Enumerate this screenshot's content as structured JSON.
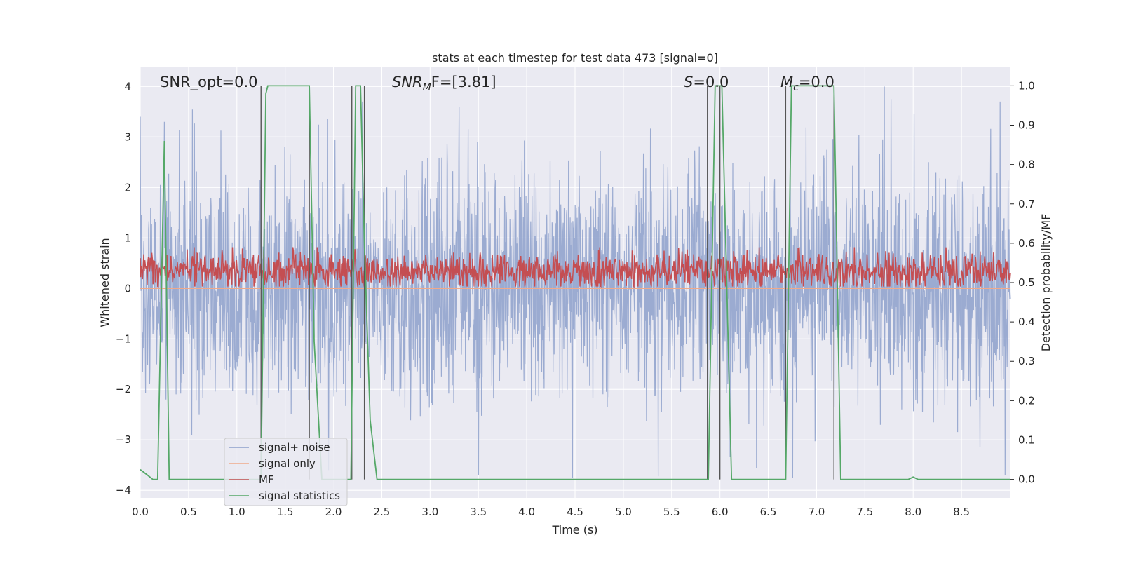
{
  "chart_data": {
    "type": "line",
    "title": "stats at each timestep for test data 473 [signal=0]",
    "xlabel": "Time (s)",
    "ylabel": "Whitened strain",
    "y2label": "Detection probability/MF",
    "xlim": [
      0.0,
      9.0
    ],
    "ylim": [
      -4.15,
      4.38
    ],
    "y2lim": [
      -0.047,
      1.047
    ],
    "xticks": [
      "0.0",
      "0.5",
      "1.0",
      "1.5",
      "2.0",
      "2.5",
      "3.0",
      "3.5",
      "4.0",
      "4.5",
      "5.0",
      "5.5",
      "6.0",
      "6.5",
      "7.0",
      "7.5",
      "8.0",
      "8.5"
    ],
    "yticks": [
      "4",
      "3",
      "2",
      "1",
      "0",
      "−1",
      "−2",
      "−3",
      "−4"
    ],
    "y2ticks": [
      "1.0",
      "0.9",
      "0.8",
      "0.7",
      "0.6",
      "0.5",
      "0.4",
      "0.3",
      "0.2",
      "0.1",
      "0.0"
    ],
    "annotations": {
      "snr_opt": "SNR_opt=0.0",
      "snr_mf_main": "SNR",
      "snr_mf_sub": "M",
      "snr_mf_rest": "F=[3.81]",
      "s_main": "S",
      "s_rest": "=0.0",
      "mc_main": "M",
      "mc_sub": "c",
      "mc_rest": "=0.0"
    },
    "legend": {
      "position": "lower-left",
      "entries": [
        {
          "label": "signal+ noise",
          "color": "#8da0cb"
        },
        {
          "label": "signal only",
          "color": "#f0a98a"
        },
        {
          "label": "MF",
          "color": "#c44e52"
        },
        {
          "label": "signal statistics",
          "color": "#55a868"
        }
      ]
    },
    "series": [
      {
        "name": "signal+ noise",
        "axis": "left",
        "color": "#8da0cb",
        "note": "whitened noise, approx. gaussian, sigma ~1.1, extremes about -3.7 to +4.0",
        "peaks": [
          [
            0.0,
            3.4
          ],
          [
            0.25,
            3.3
          ],
          [
            2.3,
            3.7
          ],
          [
            3.3,
            3.6
          ],
          [
            7.7,
            4.0
          ],
          [
            8.9,
            3.7
          ],
          [
            3.5,
            -3.7
          ],
          [
            1.95,
            -3.6
          ],
          [
            8.95,
            -3.7
          ]
        ]
      },
      {
        "name": "signal only",
        "axis": "left",
        "color": "#f0a98a",
        "note": "zero everywhere (signal=0)",
        "x": [
          0.0,
          9.0
        ],
        "y": [
          0.0,
          0.0
        ]
      },
      {
        "name": "MF",
        "axis": "right",
        "color": "#c44e52",
        "note": "matched-filter output fluctuating between about 0.49 and 0.59",
        "range": [
          0.49,
          0.59
        ]
      },
      {
        "name": "signal statistics",
        "axis": "right",
        "color": "#55a868",
        "x": [
          0.0,
          0.08,
          0.13,
          0.18,
          0.25,
          0.3,
          0.4,
          1.25,
          1.3,
          1.32,
          1.75,
          1.8,
          1.88,
          2.18,
          2.23,
          2.28,
          2.32,
          2.38,
          2.45,
          5.88,
          5.95,
          6.02,
          6.12,
          6.68,
          6.74,
          6.8,
          7.18,
          7.25,
          7.95,
          8.0,
          8.05,
          9.0
        ],
        "y": [
          0.025,
          0.01,
          0.0,
          0.0,
          0.86,
          0.0,
          0.0,
          0.0,
          0.98,
          1.0,
          1.0,
          0.35,
          0.0,
          0.0,
          1.0,
          1.0,
          0.6,
          0.15,
          0.0,
          0.0,
          1.0,
          1.0,
          0.0,
          0.0,
          1.0,
          1.0,
          1.0,
          0.0,
          0.0,
          0.006,
          0.0,
          0.0
        ]
      }
    ],
    "vlines": [
      1.25,
      1.75,
      2.19,
      2.32,
      5.87,
      6.0,
      6.68,
      7.18
    ]
  }
}
